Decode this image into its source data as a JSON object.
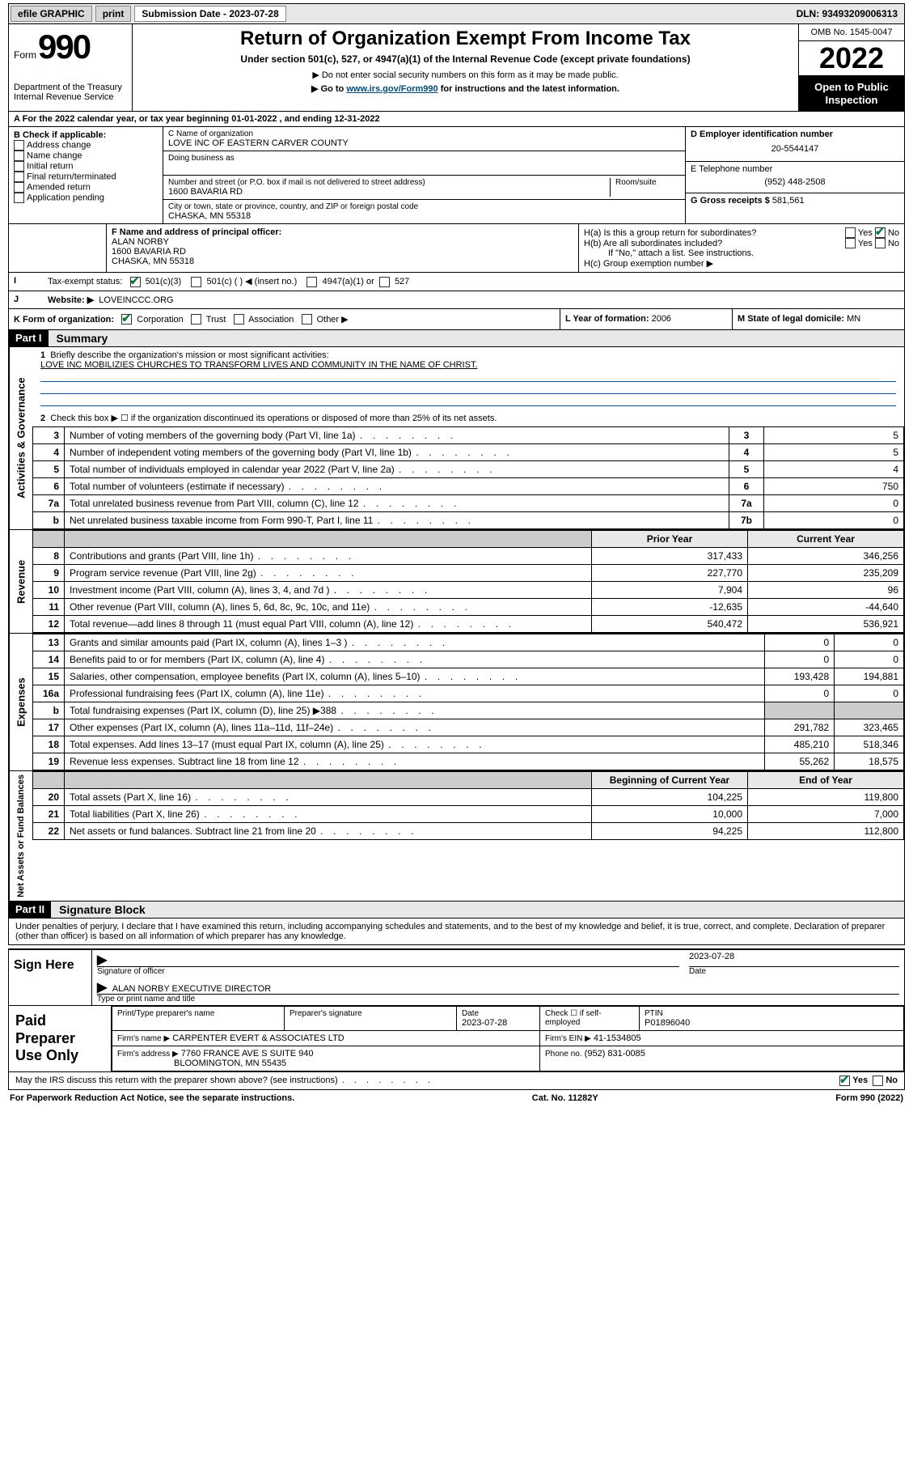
{
  "topbar": {
    "efile": "efile GRAPHIC",
    "print": "print",
    "subdate_label": "Submission Date - 2023-07-28",
    "dln": "DLN: 93493209006313"
  },
  "header": {
    "form_word": "Form",
    "form_num": "990",
    "title": "Return of Organization Exempt From Income Tax",
    "subtitle": "Under section 501(c), 527, or 4947(a)(1) of the Internal Revenue Code (except private foundations)",
    "warn1": "▶ Do not enter social security numbers on this form as it may be made public.",
    "warn2_pre": "▶ Go to ",
    "warn2_link": "www.irs.gov/Form990",
    "warn2_post": " for instructions and the latest information.",
    "dept": "Department of the Treasury",
    "irs": "Internal Revenue Service",
    "omb": "OMB No. 1545-0047",
    "year": "2022",
    "open": "Open to Public Inspection"
  },
  "A": {
    "text": "For the 2022 calendar year, or tax year beginning 01-01-2022   , and ending 12-31-2022"
  },
  "B": {
    "label": "B Check if applicable:",
    "items": [
      "Address change",
      "Name change",
      "Initial return",
      "Final return/terminated",
      "Amended return",
      "Application pending"
    ]
  },
  "C": {
    "name_label": "C Name of organization",
    "name": "LOVE INC OF EASTERN CARVER COUNTY",
    "dba_label": "Doing business as",
    "street_label": "Number and street (or P.O. box if mail is not delivered to street address)",
    "room_label": "Room/suite",
    "street": "1600 BAVARIA RD",
    "city_label": "City or town, state or province, country, and ZIP or foreign postal code",
    "city": "CHASKA, MN  55318"
  },
  "D": {
    "label": "D Employer identification number",
    "value": "20-5544147"
  },
  "E": {
    "label": "E Telephone number",
    "value": "(952) 448-2508"
  },
  "G": {
    "label": "G Gross receipts $",
    "value": "581,561"
  },
  "F": {
    "label": "F  Name and address of principal officer:",
    "name": "ALAN NORBY",
    "street": "1600 BAVARIA RD",
    "city": "CHASKA, MN  55318"
  },
  "H": {
    "a": "H(a)  Is this a group return for subordinates?",
    "b": "H(b)  Are all subordinates included?",
    "b_note": "If \"No,\" attach a list. See instructions.",
    "c": "H(c)  Group exemption number ▶",
    "yes": "Yes",
    "no": "No"
  },
  "I": {
    "label": "Tax-exempt status:",
    "c3": "501(c)(3)",
    "c": "501(c) (   ) ◀ (insert no.)",
    "a1": "4947(a)(1) or",
    "s527": "527"
  },
  "J": {
    "label": "Website: ▶",
    "value": "LOVEINCCC.ORG"
  },
  "K": {
    "label": "K Form of organization:",
    "corp": "Corporation",
    "trust": "Trust",
    "assoc": "Association",
    "other": "Other ▶"
  },
  "L": {
    "label": "L Year of formation:",
    "value": "2006"
  },
  "M": {
    "label": "M State of legal domicile:",
    "value": "MN"
  },
  "part1": {
    "hdr": "Part I",
    "title": "Summary",
    "side_gov": "Activities & Governance",
    "side_rev": "Revenue",
    "side_exp": "Expenses",
    "side_net": "Net Assets or Fund Balances",
    "line1_label": "Briefly describe the organization's mission or most significant activities:",
    "line1_text": "LOVE INC MOBILIZIES CHURCHES TO TRANSFORM LIVES AND COMMUNITY IN THE NAME OF CHRIST.",
    "line2": "Check this box ▶ ☐  if the organization discontinued its operations or disposed of more than 25% of its net assets.",
    "rows_gov": [
      {
        "n": "3",
        "t": "Number of voting members of the governing body (Part VI, line 1a)",
        "box": "3",
        "v": "5"
      },
      {
        "n": "4",
        "t": "Number of independent voting members of the governing body (Part VI, line 1b)",
        "box": "4",
        "v": "5"
      },
      {
        "n": "5",
        "t": "Total number of individuals employed in calendar year 2022 (Part V, line 2a)",
        "box": "5",
        "v": "4"
      },
      {
        "n": "6",
        "t": "Total number of volunteers (estimate if necessary)",
        "box": "6",
        "v": "750"
      },
      {
        "n": "7a",
        "t": "Total unrelated business revenue from Part VIII, column (C), line 12",
        "box": "7a",
        "v": "0"
      },
      {
        "n": "b",
        "t": "Net unrelated business taxable income from Form 990-T, Part I, line 11",
        "box": "7b",
        "v": "0"
      }
    ],
    "col_prior": "Prior Year",
    "col_curr": "Current Year",
    "rows_rev": [
      {
        "n": "8",
        "t": "Contributions and grants (Part VIII, line 1h)",
        "p": "317,433",
        "c": "346,256"
      },
      {
        "n": "9",
        "t": "Program service revenue (Part VIII, line 2g)",
        "p": "227,770",
        "c": "235,209"
      },
      {
        "n": "10",
        "t": "Investment income (Part VIII, column (A), lines 3, 4, and 7d )",
        "p": "7,904",
        "c": "96"
      },
      {
        "n": "11",
        "t": "Other revenue (Part VIII, column (A), lines 5, 6d, 8c, 9c, 10c, and 11e)",
        "p": "-12,635",
        "c": "-44,640"
      },
      {
        "n": "12",
        "t": "Total revenue—add lines 8 through 11 (must equal Part VIII, column (A), line 12)",
        "p": "540,472",
        "c": "536,921"
      }
    ],
    "rows_exp": [
      {
        "n": "13",
        "t": "Grants and similar amounts paid (Part IX, column (A), lines 1–3 )",
        "p": "0",
        "c": "0"
      },
      {
        "n": "14",
        "t": "Benefits paid to or for members (Part IX, column (A), line 4)",
        "p": "0",
        "c": "0"
      },
      {
        "n": "15",
        "t": "Salaries, other compensation, employee benefits (Part IX, column (A), lines 5–10)",
        "p": "193,428",
        "c": "194,881"
      },
      {
        "n": "16a",
        "t": "Professional fundraising fees (Part IX, column (A), line 11e)",
        "p": "0",
        "c": "0"
      },
      {
        "n": "b",
        "t": "Total fundraising expenses (Part IX, column (D), line 25) ▶388",
        "p": "",
        "c": "",
        "shade": true
      },
      {
        "n": "17",
        "t": "Other expenses (Part IX, column (A), lines 11a–11d, 11f–24e)",
        "p": "291,782",
        "c": "323,465"
      },
      {
        "n": "18",
        "t": "Total expenses. Add lines 13–17 (must equal Part IX, column (A), line 25)",
        "p": "485,210",
        "c": "518,346"
      },
      {
        "n": "19",
        "t": "Revenue less expenses. Subtract line 18 from line 12",
        "p": "55,262",
        "c": "18,575"
      }
    ],
    "col_beg": "Beginning of Current Year",
    "col_end": "End of Year",
    "rows_net": [
      {
        "n": "20",
        "t": "Total assets (Part X, line 16)",
        "p": "104,225",
        "c": "119,800"
      },
      {
        "n": "21",
        "t": "Total liabilities (Part X, line 26)",
        "p": "10,000",
        "c": "7,000"
      },
      {
        "n": "22",
        "t": "Net assets or fund balances. Subtract line 21 from line 20",
        "p": "94,225",
        "c": "112,800"
      }
    ]
  },
  "part2": {
    "hdr": "Part II",
    "title": "Signature Block",
    "declare": "Under penalties of perjury, I declare that I have examined this return, including accompanying schedules and statements, and to the best of my knowledge and belief, it is true, correct, and complete. Declaration of preparer (other than officer) is based on all information of which preparer has any knowledge.",
    "sign_here": "Sign Here",
    "sig_officer": "Signature of officer",
    "sig_date": "2023-07-28",
    "date_lbl": "Date",
    "officer_name": "ALAN NORBY EXECUTIVE DIRECTOR",
    "name_title": "Type or print name and title",
    "paid": "Paid Preparer Use Only",
    "p_name": "Print/Type preparer's name",
    "p_sig": "Preparer's signature",
    "p_date_lbl": "Date",
    "p_date": "2023-07-28",
    "p_check": "Check ☐ if self-employed",
    "ptin_lbl": "PTIN",
    "ptin": "P01896040",
    "firm_name_lbl": "Firm's name   ▶",
    "firm_name": "CARPENTER EVERT & ASSOCIATES LTD",
    "firm_ein_lbl": "Firm's EIN ▶",
    "firm_ein": "41-1534805",
    "firm_addr_lbl": "Firm's address ▶",
    "firm_addr1": "7760 FRANCE AVE S SUITE 940",
    "firm_addr2": "BLOOMINGTON, MN  55435",
    "phone_lbl": "Phone no.",
    "phone": "(952) 831-0085",
    "discuss": "May the IRS discuss this return with the preparer shown above? (see instructions)",
    "yes": "Yes",
    "no": "No"
  },
  "footer": {
    "left": "For Paperwork Reduction Act Notice, see the separate instructions.",
    "mid": "Cat. No. 11282Y",
    "right": "Form 990 (2022)"
  }
}
